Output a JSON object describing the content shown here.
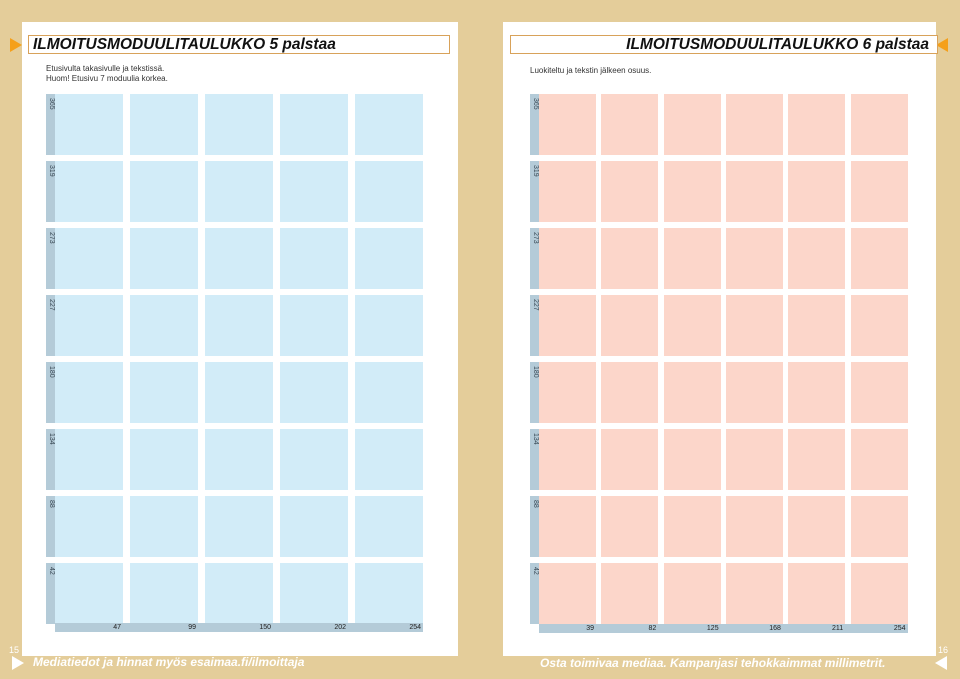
{
  "left_page": {
    "title": "ILMOITUSMODUULITAULUKKO 5 palstaa",
    "subtitle_lines": [
      "Etusivulta takasivulle ja tekstissä.",
      "Huom! Etusivu 7 moduulia korkea."
    ],
    "row_labels": [
      "365",
      "319",
      "273",
      "227",
      "180",
      "134",
      "88",
      "42"
    ],
    "column_labels": [
      "47",
      "99",
      "150",
      "202",
      "254"
    ],
    "page_number": "15",
    "footer": "Mediatiedot ja hinnat myös esaimaa.fi/ilmoittaja",
    "cell_color": "#d2ecf8"
  },
  "right_page": {
    "title": "ILMOITUSMODUULITAULUKKO 6 palstaa",
    "subtitle": "Luokiteltu ja tekstin jälkeen osuus.",
    "row_labels": [
      "365",
      "319",
      "273",
      "227",
      "180",
      "134",
      "88",
      "42"
    ],
    "column_labels": [
      "39",
      "82",
      "125",
      "168",
      "211",
      "254"
    ],
    "page_number": "16",
    "footer": "Osta toimivaa mediaa. Kampanjasi tehokkaimmat millimetrit.",
    "cell_color": "#fcd6ca"
  },
  "colors": {
    "background": "#e4cd9a",
    "accent": "#f5a01a",
    "label_strip": "#b4cbd8"
  }
}
